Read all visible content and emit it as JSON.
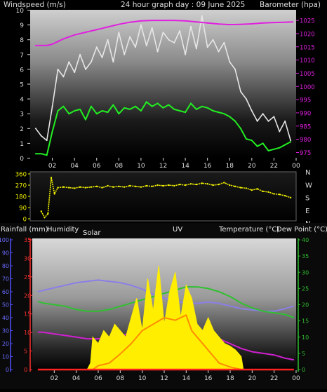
{
  "chart_data": [
    {
      "type": "line",
      "title": "24 hour graph day : 09 June 2025",
      "y_label_left": "Windspeed (m/s)",
      "y_label_right": "Barometer (hpa)",
      "x_ticks": [
        "02",
        "04",
        "06",
        "08",
        "10",
        "12",
        "14",
        "16",
        "18",
        "20",
        "22",
        "00"
      ],
      "y_left_ticks": [
        "0",
        "1",
        "2",
        "3",
        "4",
        "5",
        "6",
        "7",
        "8",
        "9",
        "10"
      ],
      "y_left_range": [
        0,
        10
      ],
      "y_right_ticks": [
        "975",
        "980",
        "985",
        "990",
        "995",
        "1000",
        "1005",
        "1010",
        "1015",
        "1020",
        "1025"
      ],
      "y_right_range": [
        973,
        1029
      ],
      "x_range_hours": [
        24,
        48
      ],
      "series": [
        {
          "key": "gust",
          "color": "#e6e6e6",
          "x": [
            24.5,
            25,
            25.5,
            26,
            26.5,
            27,
            27.5,
            28,
            28.5,
            29,
            29.5,
            30,
            30.5,
            31,
            31.5,
            32,
            32.5,
            33,
            33.5,
            34,
            34.5,
            35,
            35.5,
            36,
            36.5,
            37,
            37.5,
            38,
            38.5,
            39,
            39.5,
            40,
            40.5,
            41,
            41.5,
            42,
            42.5,
            43,
            43.5,
            44,
            44.5,
            45,
            45.5,
            46,
            46.5,
            47,
            47.5
          ],
          "values": [
            2,
            1.5,
            1.2,
            3.5,
            6,
            5.5,
            6.5,
            5.8,
            7,
            6,
            6.5,
            7.5,
            6.8,
            8,
            6.5,
            8.5,
            7,
            8.2,
            7.5,
            9,
            7.6,
            8.8,
            7.2,
            8.5,
            8,
            7.8,
            8.6,
            7,
            8.9,
            7.4,
            9.6,
            7.5,
            8,
            7.2,
            7.8,
            6.5,
            6,
            4.5,
            4,
            3.2,
            2.5,
            3,
            2.5,
            2.8,
            1.8,
            2.5,
            1.2
          ]
        },
        {
          "key": "wind_avg",
          "color": "#22ee22",
          "x": [
            24.5,
            25,
            25.5,
            26,
            26.5,
            27,
            27.5,
            28,
            28.5,
            29,
            29.5,
            30,
            30.5,
            31,
            31.5,
            32,
            32.5,
            33,
            33.5,
            34,
            34.5,
            35,
            35.5,
            36,
            36.5,
            37,
            37.5,
            38,
            38.5,
            39,
            39.5,
            40,
            40.5,
            41,
            41.5,
            42,
            42.5,
            43,
            43.5,
            44,
            44.5,
            45,
            45.5,
            46,
            46.5,
            47,
            47.5
          ],
          "values": [
            0.3,
            0.3,
            0.2,
            1.8,
            3.2,
            3.5,
            3,
            3.2,
            3.3,
            2.6,
            3.5,
            3,
            3.2,
            3.1,
            3.6,
            3,
            3.4,
            3.3,
            3.5,
            3.2,
            3.8,
            3.5,
            3.7,
            3.4,
            3.6,
            3.3,
            3.2,
            3.1,
            3.7,
            3.3,
            3.5,
            3.4,
            3.2,
            3.1,
            3,
            2.8,
            2.5,
            2,
            1.3,
            1.2,
            0.8,
            1,
            0.5,
            0.6,
            0.7,
            0.9,
            1.1
          ]
        },
        {
          "key": "barometer",
          "axis": "right",
          "color": "#e020e0",
          "x": [
            24.5,
            25,
            25.5,
            26,
            26.5,
            27,
            28,
            29,
            30,
            31,
            32,
            33,
            34,
            35,
            36,
            37,
            38,
            39,
            40,
            41,
            42,
            43,
            44,
            45,
            46,
            47,
            47.7
          ],
          "values": [
            1015.5,
            1015.5,
            1015.5,
            1016,
            1017,
            1018,
            1019.5,
            1020.5,
            1021.5,
            1022.5,
            1023.5,
            1024.3,
            1024.8,
            1025,
            1025,
            1025,
            1024.8,
            1024.4,
            1024,
            1023.6,
            1023.4,
            1023.5,
            1023.7,
            1024,
            1024.2,
            1024.3,
            1024.4
          ]
        }
      ]
    },
    {
      "type": "scatter",
      "y_ticks": [
        "360",
        "270",
        "180",
        "90",
        "0"
      ],
      "y_range": [
        0,
        360
      ],
      "right_labels": [
        "N",
        "W",
        "S",
        "E",
        "N"
      ],
      "x_range_hours": [
        24,
        48
      ],
      "series": [
        {
          "key": "wind_direction",
          "color": "#f0f000",
          "x": [
            25,
            25.3,
            25.6,
            25.9,
            26.2,
            26.5,
            27,
            27.5,
            28,
            28.5,
            29,
            29.5,
            30,
            30.5,
            31,
            31.5,
            32,
            32.5,
            33,
            33.5,
            34,
            34.5,
            35,
            35.5,
            36,
            36.5,
            37,
            37.5,
            38,
            38.5,
            39,
            39.5,
            40,
            40.5,
            41,
            41.5,
            42,
            42.5,
            43,
            43.5,
            44,
            44.5,
            45,
            45.5,
            46,
            46.5,
            47,
            47.5
          ],
          "values": [
            60,
            10,
            40,
            330,
            200,
            250,
            255,
            250,
            245,
            255,
            250,
            255,
            260,
            250,
            265,
            255,
            260,
            255,
            265,
            260,
            255,
            265,
            260,
            270,
            265,
            270,
            265,
            275,
            270,
            280,
            275,
            285,
            280,
            270,
            275,
            290,
            270,
            260,
            250,
            245,
            230,
            240,
            220,
            215,
            200,
            195,
            185,
            170
          ]
        }
      ]
    },
    {
      "type": "line",
      "labels": {
        "rain": "Rainfall (mm)",
        "humidity": "Humidity",
        "solar": "Solar",
        "uv": "UV",
        "temperature": "Temperature (°C)",
        "dewpoint": "Dew Point (°C)"
      },
      "humidity_ticks": [
        "0",
        "10",
        "20",
        "30",
        "40",
        "50",
        "60",
        "70",
        "80",
        "90",
        "100"
      ],
      "rain_ticks": [
        "0",
        "5",
        "10",
        "15",
        "20",
        "25",
        "30",
        "35"
      ],
      "temp_ticks": [
        "0",
        "5",
        "10",
        "15",
        "20",
        "25",
        "30",
        "35",
        "40"
      ],
      "x_ticks": [
        "02",
        "04",
        "06",
        "08",
        "10",
        "12",
        "14",
        "16",
        "18",
        "20",
        "22",
        "00"
      ],
      "x_range_hours": [
        24,
        48
      ],
      "series": [
        {
          "key": "humidity",
          "color": "#8a7fe6",
          "x": [
            24.5,
            25,
            26,
            27,
            28,
            29,
            30,
            31,
            32,
            33,
            34,
            35,
            36,
            37,
            38,
            39,
            40,
            41,
            42,
            43,
            44,
            45,
            46,
            47,
            47.8
          ],
          "values": [
            60,
            61,
            63,
            65,
            67,
            68,
            69,
            68,
            67,
            65,
            62,
            58,
            55,
            53,
            51,
            51,
            52,
            51,
            49,
            47,
            46,
            45,
            45,
            47,
            49
          ]
        },
        {
          "key": "temperature",
          "color": "#30c030",
          "x": [
            24.5,
            25,
            26,
            27,
            28,
            29,
            30,
            31,
            32,
            33,
            34,
            35,
            36,
            37,
            38,
            39,
            40,
            41,
            42,
            43,
            44,
            45,
            46,
            47,
            47.8
          ],
          "values": [
            21,
            20.5,
            20,
            19.5,
            18.5,
            18,
            18,
            18.5,
            19.5,
            20.5,
            21.5,
            22.5,
            23.5,
            24.5,
            25.5,
            25.5,
            25,
            24,
            22.5,
            20.5,
            19,
            18,
            17.5,
            17,
            16
          ]
        },
        {
          "key": "dewpoint",
          "color": "#d020d0",
          "x": [
            24.5,
            25,
            26,
            27,
            28,
            29,
            30,
            31,
            32,
            33,
            34,
            35,
            36,
            37,
            38,
            39,
            40,
            41,
            42,
            43,
            44,
            45,
            46,
            47,
            47.8
          ],
          "values": [
            11.5,
            11.5,
            11,
            10.5,
            10,
            9.5,
            9.5,
            10,
            10.5,
            11,
            11.5,
            12,
            12.5,
            13,
            12.8,
            12,
            11,
            9.5,
            8,
            6.5,
            5.5,
            5,
            4.5,
            3.5,
            3
          ]
        },
        {
          "key": "solar",
          "color": "#ffee00",
          "x": [
            29,
            29.3,
            29.5,
            30,
            30.5,
            31,
            31.5,
            32,
            32.5,
            33,
            33.5,
            34,
            34.5,
            35,
            35.5,
            36,
            36.5,
            37,
            37.5,
            38,
            38.5,
            39,
            39.5,
            40,
            40.5,
            41,
            41.5,
            42,
            42.5,
            43,
            43.2
          ],
          "values": [
            0,
            5,
            25,
            20,
            30,
            25,
            35,
            30,
            25,
            40,
            55,
            30,
            70,
            45,
            80,
            35,
            60,
            75,
            40,
            65,
            55,
            35,
            30,
            40,
            30,
            25,
            20,
            18,
            15,
            10,
            0
          ]
        },
        {
          "key": "uv",
          "color": "#ff8c00",
          "x": [
            29.5,
            30,
            31,
            32,
            33,
            34,
            35,
            36,
            37,
            38,
            38.5,
            39,
            39.5,
            40,
            40.5,
            41,
            42,
            43
          ],
          "values": [
            0,
            0.3,
            0.5,
            1.2,
            2,
            3,
            3.5,
            4,
            3.8,
            4.2,
            3,
            2.5,
            2,
            1.5,
            1,
            0.5,
            0.2,
            0
          ]
        },
        {
          "key": "rain",
          "color": "#ff2020",
          "x": [
            24.5,
            47.8
          ],
          "values": [
            0,
            0
          ]
        }
      ]
    }
  ]
}
